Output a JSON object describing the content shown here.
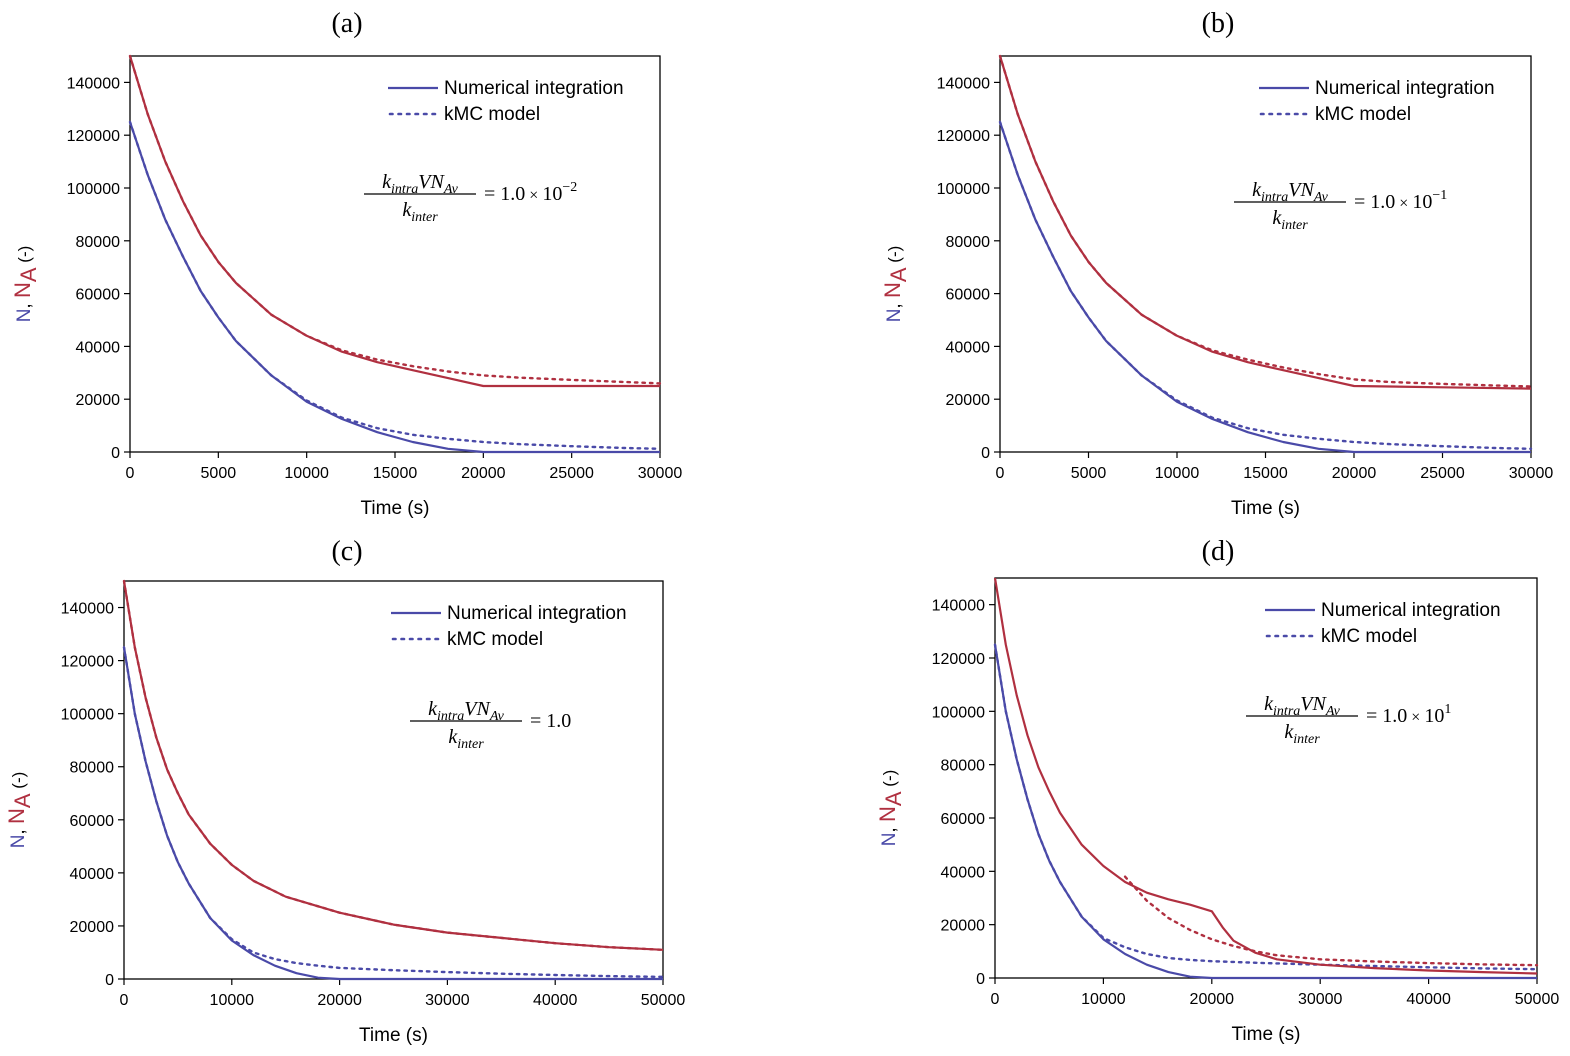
{
  "figure": {
    "legend": {
      "solid": "Numerical integration",
      "dotted": "kMC model"
    },
    "colors": {
      "n": "#4a4aa8",
      "na": "#b03040",
      "axis": "#000000"
    },
    "ylabel": {
      "n": "N",
      "sep": ", ",
      "na_base": "N",
      "na_sub": "A",
      "unit": " (-)"
    },
    "xlabel": "Time (s)",
    "equation": {
      "k": "k",
      "intra_sub": "intra",
      "vn": "VN",
      "av_sub": "Av",
      "inter_sub": "inter",
      "eq_sign": "=",
      "times": "×",
      "ten": "10"
    }
  },
  "chart_data": [
    {
      "panel": "(a)",
      "type": "line",
      "xlabel": "Time (s)",
      "ylabel": "N, NA (-)",
      "xlim": [
        0,
        30000
      ],
      "ylim": [
        0,
        150000
      ],
      "xticks": [
        0,
        5000,
        10000,
        15000,
        20000,
        25000,
        30000
      ],
      "yticks": [
        0,
        20000,
        40000,
        60000,
        80000,
        100000,
        120000,
        140000
      ],
      "ratio": {
        "mantissa": "1.0",
        "exponent": "−2"
      },
      "series": [
        {
          "name": "N numerical integration",
          "color": "n",
          "style": "solid",
          "x": [
            0,
            1000,
            2000,
            3000,
            4000,
            5000,
            6000,
            8000,
            10000,
            12000,
            14000,
            16000,
            18000,
            20000,
            30000
          ],
          "y": [
            125000,
            105000,
            88000,
            74000,
            61000,
            51000,
            42000,
            29000,
            19000,
            12500,
            7500,
            3800,
            1200,
            0,
            0
          ]
        },
        {
          "name": "N kMC model",
          "color": "n",
          "style": "dotted",
          "x": [
            0,
            1000,
            2000,
            3000,
            4000,
            5000,
            6000,
            8000,
            10000,
            12000,
            14000,
            16000,
            18000,
            20000,
            22000,
            25000,
            28000,
            30000
          ],
          "y": [
            125000,
            105000,
            88000,
            74000,
            61000,
            51000,
            42000,
            29000,
            19500,
            13000,
            9000,
            6500,
            5000,
            3800,
            3000,
            2200,
            1500,
            1200
          ]
        },
        {
          "name": "NA numerical integration",
          "color": "na",
          "style": "solid",
          "x": [
            0,
            1000,
            2000,
            3000,
            4000,
            5000,
            6000,
            8000,
            10000,
            12000,
            14000,
            16000,
            18000,
            20000,
            30000
          ],
          "y": [
            150000,
            128000,
            110000,
            95000,
            82000,
            72000,
            64000,
            52000,
            44000,
            38000,
            34000,
            31000,
            28000,
            25000,
            25000
          ]
        },
        {
          "name": "NA kMC model",
          "color": "na",
          "style": "dotted",
          "x": [
            0,
            1000,
            2000,
            3000,
            4000,
            5000,
            6000,
            8000,
            10000,
            12000,
            14000,
            16000,
            18000,
            20000,
            22000,
            25000,
            28000,
            30000
          ],
          "y": [
            150000,
            128000,
            110000,
            95000,
            82000,
            72000,
            64000,
            52000,
            44000,
            38500,
            35000,
            32500,
            30500,
            29000,
            28200,
            27300,
            26500,
            26000
          ]
        }
      ]
    },
    {
      "panel": "(b)",
      "type": "line",
      "xlabel": "Time (s)",
      "ylabel": "N, NA (-)",
      "xlim": [
        0,
        30000
      ],
      "ylim": [
        0,
        150000
      ],
      "xticks": [
        0,
        5000,
        10000,
        15000,
        20000,
        25000,
        30000
      ],
      "yticks": [
        0,
        20000,
        40000,
        60000,
        80000,
        100000,
        120000,
        140000
      ],
      "ratio": {
        "mantissa": "1.0",
        "exponent": "−1"
      },
      "series": [
        {
          "name": "N numerical integration",
          "color": "n",
          "style": "solid",
          "x": [
            0,
            1000,
            2000,
            3000,
            4000,
            5000,
            6000,
            8000,
            10000,
            12000,
            14000,
            16000,
            18000,
            20000,
            30000
          ],
          "y": [
            125000,
            105000,
            88000,
            74000,
            61000,
            51000,
            42000,
            29000,
            19000,
            12500,
            7500,
            3800,
            1200,
            0,
            0
          ]
        },
        {
          "name": "N kMC model",
          "color": "n",
          "style": "dotted",
          "x": [
            0,
            1000,
            2000,
            3000,
            4000,
            5000,
            6000,
            8000,
            10000,
            12000,
            14000,
            16000,
            18000,
            20000,
            22000,
            25000,
            28000,
            30000
          ],
          "y": [
            125000,
            105000,
            88000,
            74000,
            61000,
            51000,
            42000,
            29000,
            19500,
            13000,
            9000,
            6500,
            5000,
            3800,
            3000,
            2200,
            1500,
            1200
          ]
        },
        {
          "name": "NA numerical integration",
          "color": "na",
          "style": "solid",
          "x": [
            0,
            1000,
            2000,
            3000,
            4000,
            5000,
            6000,
            8000,
            10000,
            12000,
            14000,
            16000,
            18000,
            20000,
            22000,
            25000,
            30000
          ],
          "y": [
            150000,
            128000,
            110000,
            95000,
            82000,
            72000,
            64000,
            52000,
            44000,
            38000,
            34000,
            31000,
            28000,
            25000,
            24800,
            24500,
            24000
          ]
        },
        {
          "name": "NA kMC model",
          "color": "na",
          "style": "dotted",
          "x": [
            0,
            1000,
            2000,
            3000,
            4000,
            5000,
            6000,
            8000,
            10000,
            12000,
            14000,
            16000,
            18000,
            20000,
            22000,
            25000,
            28000,
            30000
          ],
          "y": [
            150000,
            128000,
            110000,
            95000,
            82000,
            72000,
            64000,
            52000,
            44000,
            38500,
            35000,
            32000,
            29500,
            27500,
            26500,
            25800,
            25200,
            24800
          ]
        }
      ]
    },
    {
      "panel": "(c)",
      "type": "line",
      "xlabel": "Time (s)",
      "ylabel": "N, NA (-)",
      "xlim": [
        0,
        50000
      ],
      "ylim": [
        0,
        150000
      ],
      "xticks": [
        0,
        10000,
        20000,
        30000,
        40000,
        50000
      ],
      "yticks": [
        0,
        20000,
        40000,
        60000,
        80000,
        100000,
        120000,
        140000
      ],
      "ratio": {
        "mantissa": "1.0",
        "exponent": ""
      },
      "series": [
        {
          "name": "N numerical integration",
          "color": "n",
          "style": "solid",
          "x": [
            0,
            1000,
            2000,
            3000,
            4000,
            5000,
            6000,
            8000,
            10000,
            12000,
            14000,
            16000,
            18000,
            20000,
            50000
          ],
          "y": [
            125000,
            100000,
            82000,
            67000,
            54000,
            44000,
            36000,
            23000,
            14500,
            9000,
            5000,
            2200,
            500,
            0,
            0
          ]
        },
        {
          "name": "N kMC model",
          "color": "n",
          "style": "dotted",
          "x": [
            0,
            1000,
            2000,
            3000,
            4000,
            5000,
            6000,
            8000,
            10000,
            12000,
            14000,
            16000,
            18000,
            20000,
            25000,
            30000,
            35000,
            40000,
            45000,
            50000
          ],
          "y": [
            125000,
            100000,
            82000,
            67000,
            54000,
            44000,
            36000,
            23000,
            15000,
            10000,
            7500,
            6000,
            5000,
            4200,
            3300,
            2600,
            2000,
            1500,
            1100,
            800
          ]
        },
        {
          "name": "NA numerical integration",
          "color": "na",
          "style": "solid",
          "x": [
            0,
            1000,
            2000,
            3000,
            4000,
            5000,
            6000,
            8000,
            10000,
            12000,
            15000,
            20000,
            25000,
            30000,
            35000,
            40000,
            45000,
            50000
          ],
          "y": [
            150000,
            125000,
            106000,
            91000,
            79000,
            70000,
            62000,
            51000,
            43000,
            37000,
            31000,
            25000,
            20500,
            17500,
            15500,
            13500,
            12000,
            11000
          ]
        },
        {
          "name": "NA kMC model",
          "color": "na",
          "style": "dotted",
          "x": [
            0,
            1000,
            2000,
            3000,
            4000,
            5000,
            6000,
            8000,
            10000,
            12000,
            15000,
            20000,
            25000,
            30000,
            35000,
            40000,
            45000,
            50000
          ],
          "y": [
            150000,
            125000,
            106000,
            91000,
            79000,
            70000,
            62000,
            51000,
            43000,
            37000,
            31000,
            25000,
            20500,
            17500,
            15500,
            13500,
            12000,
            11000
          ]
        }
      ]
    },
    {
      "panel": "(d)",
      "type": "line",
      "xlabel": "Time (s)",
      "ylabel": "N, NA (-)",
      "xlim": [
        0,
        50000
      ],
      "ylim": [
        0,
        150000
      ],
      "xticks": [
        0,
        10000,
        20000,
        30000,
        40000,
        50000
      ],
      "yticks": [
        0,
        20000,
        40000,
        60000,
        80000,
        100000,
        120000,
        140000
      ],
      "ratio": {
        "mantissa": "1.0",
        "exponent": "1"
      },
      "series": [
        {
          "name": "N numerical integration",
          "color": "n",
          "style": "solid",
          "x": [
            0,
            1000,
            2000,
            3000,
            4000,
            5000,
            6000,
            8000,
            10000,
            12000,
            14000,
            16000,
            18000,
            20000,
            50000
          ],
          "y": [
            125000,
            100000,
            82000,
            67000,
            54000,
            44000,
            36000,
            23000,
            14500,
            9000,
            5000,
            2200,
            500,
            0,
            0
          ]
        },
        {
          "name": "N kMC model",
          "color": "n",
          "style": "dotted",
          "x": [
            0,
            1000,
            2000,
            3000,
            4000,
            5000,
            6000,
            8000,
            10000,
            12000,
            14000,
            16000,
            18000,
            20000,
            25000,
            30000,
            35000,
            40000,
            45000,
            50000
          ],
          "y": [
            125000,
            100000,
            82000,
            67000,
            54000,
            44000,
            36000,
            23000,
            15000,
            11500,
            9000,
            7500,
            6800,
            6300,
            5600,
            5000,
            4500,
            4000,
            3600,
            3300
          ]
        },
        {
          "name": "NA numerical integration",
          "color": "na",
          "style": "solid",
          "x": [
            0,
            1000,
            2000,
            3000,
            4000,
            5000,
            6000,
            8000,
            10000,
            12000,
            14000,
            16000,
            18000,
            20000,
            20500,
            21000,
            22000,
            24000,
            26000,
            30000,
            35000,
            40000,
            45000,
            50000
          ],
          "y": [
            150000,
            125000,
            106000,
            91000,
            79000,
            70000,
            62000,
            50000,
            42000,
            36000,
            32000,
            29500,
            27500,
            25000,
            22000,
            19000,
            14000,
            9500,
            7000,
            5000,
            3700,
            2800,
            2200,
            1700
          ]
        },
        {
          "name": "NA kMC model",
          "color": "na",
          "style": "dotted",
          "x": [
            12000,
            14000,
            16000,
            18000,
            20000,
            22000,
            24000,
            26000,
            30000,
            35000,
            40000,
            45000,
            50000
          ],
          "y": [
            38000,
            29000,
            22500,
            18000,
            14500,
            12000,
            10000,
            8500,
            7000,
            6200,
            5600,
            5100,
            4800
          ]
        }
      ]
    }
  ]
}
